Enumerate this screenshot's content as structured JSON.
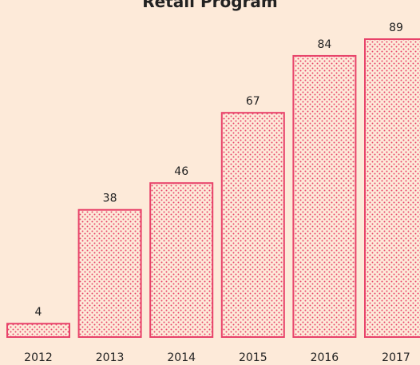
{
  "chart_data": {
    "type": "bar",
    "title": "Retail Program",
    "categories": [
      "2012",
      "2013",
      "2014",
      "2015",
      "2016",
      "2017"
    ],
    "values": [
      4,
      38,
      46,
      67,
      84,
      89
    ],
    "color": "#e8436a"
  }
}
